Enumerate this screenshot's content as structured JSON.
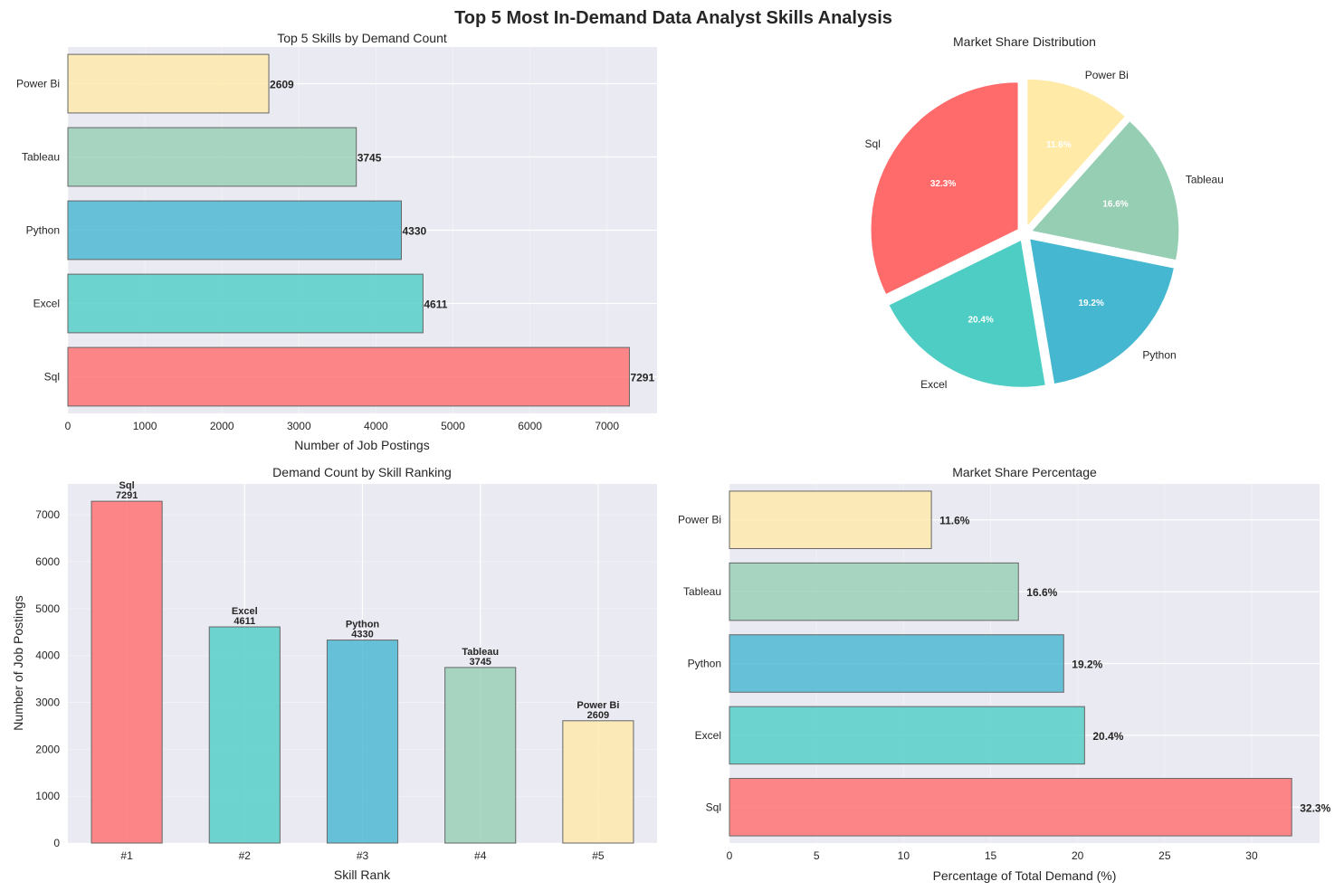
{
  "figure": {
    "title": "Top 5 Most In-Demand Data Analyst Skills Analysis"
  },
  "colors": {
    "panel_bg": "#EAEAF2",
    "grid": "#FFFFFF",
    "text": "#262626",
    "bar_edge": "#666666",
    "series": [
      "#FF6B6B",
      "#4ECDC4",
      "#45B7D1",
      "#96CEB4",
      "#FFEAA7"
    ]
  },
  "chart_data": [
    {
      "id": "bar-demand-count",
      "type": "bar",
      "orientation": "horizontal",
      "title": "Top 5 Skills by Demand Count",
      "xlabel": "Number of Job Postings",
      "ylabel": "",
      "categories": [
        "Sql",
        "Excel",
        "Python",
        "Tableau",
        "Power Bi"
      ],
      "values": [
        7291,
        4611,
        4330,
        3745,
        2609
      ],
      "value_labels": [
        "7291",
        "4611",
        "4330",
        "3745",
        "2609"
      ],
      "xlim": [
        0,
        7650
      ],
      "xticks": [
        0,
        1000,
        2000,
        3000,
        4000,
        5000,
        6000,
        7000
      ],
      "xtick_labels": [
        "0",
        "1000",
        "2000",
        "3000",
        "4000",
        "5000",
        "6000",
        "7000"
      ],
      "grid": true
    },
    {
      "id": "pie-market-share",
      "type": "pie",
      "title": "Market Share Distribution",
      "categories": [
        "Sql",
        "Excel",
        "Python",
        "Tableau",
        "Power Bi"
      ],
      "values": [
        32.3,
        20.4,
        19.2,
        16.6,
        11.6
      ],
      "value_labels": [
        "32.3%",
        "20.4%",
        "19.2%",
        "16.6%",
        "11.6%"
      ],
      "start_angle_deg": 90,
      "exploded": true
    },
    {
      "id": "bar-rank",
      "type": "bar",
      "orientation": "vertical",
      "title": "Demand Count by Skill Ranking",
      "xlabel": "Skill Rank",
      "ylabel": "Number of Job Postings",
      "categories": [
        "#1",
        "#2",
        "#3",
        "#4",
        "#5"
      ],
      "skills": [
        "Sql",
        "Excel",
        "Python",
        "Tableau",
        "Power Bi"
      ],
      "values": [
        7291,
        4611,
        4330,
        3745,
        2609
      ],
      "value_labels": [
        "7291",
        "4611",
        "4330",
        "3745",
        "2609"
      ],
      "ylim": [
        0,
        7660
      ],
      "yticks": [
        0,
        1000,
        2000,
        3000,
        4000,
        5000,
        6000,
        7000
      ],
      "ytick_labels": [
        "0",
        "1000",
        "2000",
        "3000",
        "4000",
        "5000",
        "6000",
        "7000"
      ],
      "grid": true
    },
    {
      "id": "bar-market-share-pct",
      "type": "bar",
      "orientation": "horizontal",
      "title": "Market Share Percentage",
      "xlabel": "Percentage of Total Demand (%)",
      "ylabel": "",
      "categories": [
        "Sql",
        "Excel",
        "Python",
        "Tableau",
        "Power Bi"
      ],
      "values": [
        32.3,
        20.4,
        19.2,
        16.6,
        11.6
      ],
      "value_labels": [
        "32.3%",
        "20.4%",
        "19.2%",
        "16.6%",
        "11.6%"
      ],
      "xlim": [
        0,
        33.9
      ],
      "xticks": [
        0,
        5,
        10,
        15,
        20,
        25,
        30
      ],
      "xtick_labels": [
        "0",
        "5",
        "10",
        "15",
        "20",
        "25",
        "30"
      ],
      "grid": true
    }
  ]
}
